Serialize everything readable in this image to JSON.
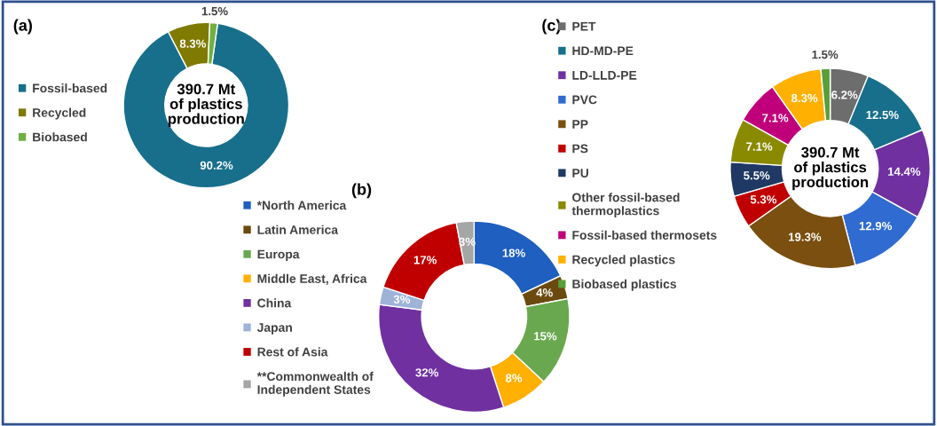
{
  "chart_data": [
    {
      "type": "donut",
      "title": "(a)",
      "categories": [
        "Fossil-based",
        "Recycled",
        "Biobased"
      ],
      "values": [
        90.2,
        8.3,
        1.5
      ],
      "colors": [
        "#176f8c",
        "#7f7a00",
        "#6fb040"
      ],
      "value_labels": [
        "90.2%",
        "8.3%",
        "1.5%"
      ],
      "legend": "left",
      "annotations": [
        "390.7 Mt\nof plastics\nproduction"
      ]
    },
    {
      "type": "donut",
      "title": "(b)",
      "categories": [
        "*North America",
        "Latin America",
        "Europa",
        "Middle East, Africa",
        "China",
        "Japan",
        "Rest of Asia",
        "**Commonwealth of\nIndependent States"
      ],
      "values": [
        18,
        4,
        15,
        8,
        32,
        3,
        17,
        3
      ],
      "colors": [
        "#1f5fbf",
        "#6b4a0f",
        "#6aa84f",
        "#ffb000",
        "#7030a0",
        "#9fb3d9",
        "#c00000",
        "#a6a6a6"
      ],
      "value_labels": [
        "18%",
        "4%",
        "15%",
        "8%",
        "32%",
        "3%",
        "17%",
        "3%"
      ],
      "legend": "left"
    },
    {
      "type": "donut",
      "title": "(c)",
      "categories": [
        "PET",
        "HD-MD-PE",
        "LD-LLD-PE",
        "PVC",
        "PP",
        "PS",
        "PU",
        "Other fossil-based\nthermoplastics",
        "Fossil-based thermosets",
        "Recycled plastics",
        "Biobased plastics"
      ],
      "values": [
        6.2,
        12.5,
        14.4,
        12.9,
        19.3,
        5.3,
        5.5,
        7.1,
        7.1,
        8.3,
        1.5
      ],
      "colors": [
        "#6d6d6d",
        "#176f8c",
        "#7030a0",
        "#2f6bd0",
        "#7a4f0f",
        "#c00000",
        "#1f3864",
        "#8a8a00",
        "#c0007a",
        "#ffb000",
        "#5a9e3a"
      ],
      "value_labels": [
        "6.2%",
        "12.5%",
        "14.4%",
        "12.9%",
        "19.3%",
        "5.3%",
        "5.5%",
        "7.1%",
        "7.1%",
        "8.3%",
        "1.5%"
      ],
      "legend": "left",
      "annotations": [
        "390.7 Mt\nof plastics\nproduction"
      ]
    }
  ]
}
